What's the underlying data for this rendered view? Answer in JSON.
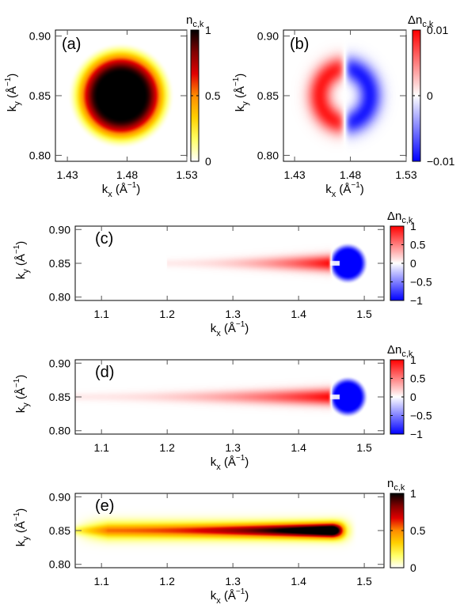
{
  "colors": {
    "hot": [
      "#ffffff",
      "#ffff66",
      "#ffd000",
      "#ff8c00",
      "#e00000",
      "#800000",
      "#000000"
    ],
    "diverging": [
      "#0000ff",
      "#ffffff",
      "#ff0000"
    ]
  },
  "chart_data": [
    {
      "panel": "(a)",
      "type": "heatmap",
      "colormap": "hot",
      "xlabel_base": "k",
      "xlabel_sub": "x",
      "xlabel_unit": " (Å",
      "xlabel_sup": "−1",
      "xlabel_close": ")",
      "ylabel_base": "k",
      "ylabel_sub": "y",
      "ylabel_unit": " (Å",
      "ylabel_sup": "−1",
      "ylabel_close": ")",
      "xlim": [
        1.42,
        1.53
      ],
      "ylim": [
        0.795,
        0.905
      ],
      "xticks": [
        1.43,
        1.48,
        1.53
      ],
      "xtick_labels": [
        "1.43",
        "1.48",
        "1.53"
      ],
      "yticks": [
        0.8,
        0.85,
        0.9
      ],
      "ytick_labels": [
        "0.80",
        "0.85",
        "0.90"
      ],
      "colorbar": {
        "label_base": "n",
        "label_sub": "c,k",
        "range": [
          0,
          1
        ],
        "ticks": [
          0,
          0.5,
          1
        ],
        "tick_labels": [
          "0",
          "0.5",
          "1"
        ]
      },
      "feature": {
        "shape": "disk",
        "center": [
          1.475,
          0.85
        ],
        "radius": 0.032,
        "peak": 1
      }
    },
    {
      "panel": "(b)",
      "type": "heatmap",
      "colormap": "diverging",
      "xlabel_base": "k",
      "xlabel_sub": "x",
      "xlabel_unit": " (Å",
      "xlabel_sup": "−1",
      "xlabel_close": ")",
      "ylabel_base": "k",
      "ylabel_sub": "y",
      "ylabel_unit": " (Å",
      "ylabel_sup": "−1",
      "ylabel_close": ")",
      "xlim": [
        1.42,
        1.53
      ],
      "ylim": [
        0.795,
        0.905
      ],
      "xticks": [
        1.43,
        1.48,
        1.53
      ],
      "xtick_labels": [
        "1.43",
        "1.48",
        "1.53"
      ],
      "yticks": [
        0.8,
        0.85,
        0.9
      ],
      "ytick_labels": [
        "0.80",
        "0.85",
        "0.90"
      ],
      "colorbar": {
        "label_base": "Δn",
        "label_sub": "c,k",
        "range": [
          -0.01,
          0.01
        ],
        "ticks": [
          -0.01,
          0,
          0.01
        ],
        "tick_labels": [
          "−0.01",
          "0",
          "0.01"
        ]
      },
      "feature": {
        "shape": "crescents",
        "center": [
          1.475,
          0.85
        ],
        "radius": 0.03,
        "left_value": 0.01,
        "right_value": -0.01
      }
    },
    {
      "panel": "(c)",
      "type": "heatmap",
      "colormap": "diverging",
      "xlabel_base": "k",
      "xlabel_sub": "x",
      "xlabel_unit": " (Å",
      "xlabel_sup": "−1",
      "xlabel_close": ")",
      "ylabel_base": "k",
      "ylabel_sub": "y",
      "ylabel_unit": " (Å",
      "ylabel_sup": "−1",
      "ylabel_close": ")",
      "xlim": [
        1.06,
        1.53
      ],
      "ylim": [
        0.795,
        0.905
      ],
      "xticks": [
        1.1,
        1.2,
        1.3,
        1.4,
        1.5
      ],
      "xtick_labels": [
        "1.1",
        "1.2",
        "1.3",
        "1.4",
        "1.5"
      ],
      "yticks": [
        0.8,
        0.85,
        0.9
      ],
      "ytick_labels": [
        "0.80",
        "0.85",
        "0.90"
      ],
      "colorbar": {
        "label_base": "Δn",
        "label_sub": "c,k",
        "range": [
          -1,
          1
        ],
        "ticks": [
          -1,
          -0.5,
          0,
          0.5,
          1
        ],
        "tick_labels": [
          "−1",
          "−0.5",
          "0",
          "0.5",
          "1"
        ]
      },
      "feature": {
        "shape": "tail",
        "blob_center": [
          1.475,
          0.85
        ],
        "blob_radius": 0.027,
        "blob_value": -1,
        "tail_start": 1.2,
        "tail_end": 1.45,
        "tail_value": 1
      }
    },
    {
      "panel": "(d)",
      "type": "heatmap",
      "colormap": "diverging",
      "xlabel_base": "k",
      "xlabel_sub": "x",
      "xlabel_unit": " (Å",
      "xlabel_sup": "−1",
      "xlabel_close": ")",
      "ylabel_base": "k",
      "ylabel_sub": "y",
      "ylabel_unit": " (Å",
      "ylabel_sup": "−1",
      "ylabel_close": ")",
      "xlim": [
        1.06,
        1.53
      ],
      "ylim": [
        0.795,
        0.905
      ],
      "xticks": [
        1.1,
        1.2,
        1.3,
        1.4,
        1.5
      ],
      "xtick_labels": [
        "1.1",
        "1.2",
        "1.3",
        "1.4",
        "1.5"
      ],
      "yticks": [
        0.8,
        0.85,
        0.9
      ],
      "ytick_labels": [
        "0.80",
        "0.85",
        "0.90"
      ],
      "colorbar": {
        "label_base": "Δn",
        "label_sub": "c,k",
        "range": [
          -1,
          1
        ],
        "ticks": [
          -1,
          -0.5,
          0,
          0.5,
          1
        ],
        "tick_labels": [
          "−1",
          "−0.5",
          "0",
          "0.5",
          "1"
        ]
      },
      "feature": {
        "shape": "tail",
        "blob_center": [
          1.475,
          0.85
        ],
        "blob_radius": 0.027,
        "blob_value": -1,
        "tail_start": 1.06,
        "tail_end": 1.45,
        "tail_value": 1
      }
    },
    {
      "panel": "(e)",
      "type": "heatmap",
      "colormap": "hot",
      "xlabel_base": "k",
      "xlabel_sub": "x",
      "xlabel_unit": " (Å",
      "xlabel_sup": "−1",
      "xlabel_close": ")",
      "ylabel_base": "k",
      "ylabel_sub": "y",
      "ylabel_unit": " (Å",
      "ylabel_sup": "−1",
      "ylabel_close": ")",
      "xlim": [
        1.06,
        1.53
      ],
      "ylim": [
        0.795,
        0.905
      ],
      "xticks": [
        1.1,
        1.2,
        1.3,
        1.4,
        1.5
      ],
      "xtick_labels": [
        "1.1",
        "1.2",
        "1.3",
        "1.4",
        "1.5"
      ],
      "yticks": [
        0.8,
        0.85,
        0.9
      ],
      "ytick_labels": [
        "0.80",
        "0.85",
        "0.90"
      ],
      "colorbar": {
        "label_base": "n",
        "label_sub": "c,k",
        "range": [
          0,
          1
        ],
        "ticks": [
          0,
          0.5,
          1
        ],
        "tick_labels": [
          "0",
          "0.5",
          "1"
        ]
      },
      "feature": {
        "shape": "streak",
        "tail_start": 1.06,
        "tail_end": 1.47,
        "peak_x": 1.45,
        "peak": 1
      }
    }
  ]
}
